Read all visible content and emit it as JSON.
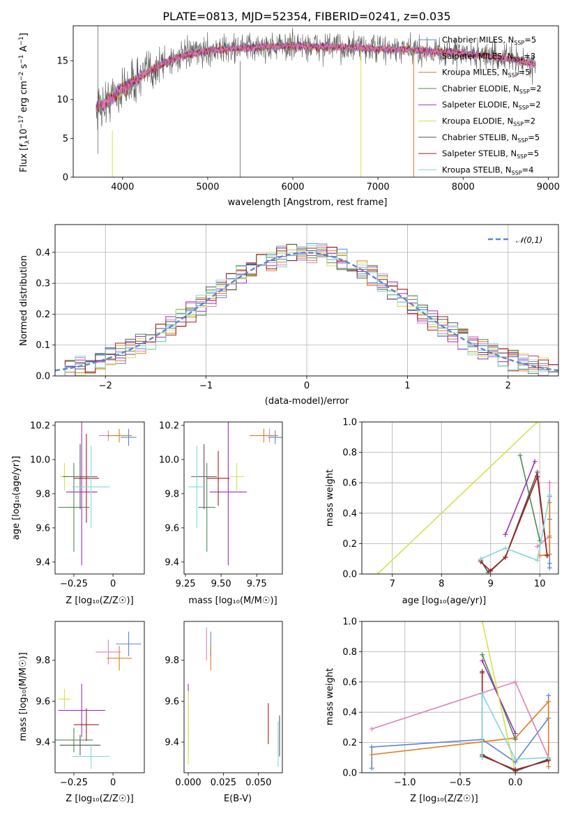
{
  "title": "PLATE=0813, MJD=52354, FIBERID=0241, z=0.035",
  "colors": [
    "#5b84d6",
    "#e07fb8",
    "#e07b20",
    "#4f8a55",
    "#9a2fbf",
    "#d8e04a",
    "#555555",
    "#a01e1e",
    "#7fd8dc"
  ],
  "chart_data": [
    {
      "type": "line",
      "name": "spectrum",
      "xlabel": "wavelength [Angstrom, rest frame]",
      "ylabel": "Flux [f_λ 10^-17 erg cm^-2 s^-1 A^-1]",
      "xlim": [
        3420,
        9120
      ],
      "ylim": [
        0,
        19.5
      ],
      "xticks": [
        4000,
        5000,
        6000,
        7000,
        8000,
        9000
      ],
      "yticks": [
        0,
        5,
        10,
        15
      ],
      "grid": false,
      "legend_position": "top-right",
      "continuum": {
        "x": [
          3690,
          3800,
          3900,
          4000,
          4100,
          4200,
          4300,
          4500,
          4700,
          4900,
          5100,
          5300,
          5500,
          5700,
          5900,
          6100,
          6300,
          6500,
          6700,
          6900,
          7100,
          7300,
          7500,
          7700,
          7900,
          8100,
          8300,
          8500,
          8700,
          8900
        ],
        "y": [
          9.0,
          9.5,
          10.5,
          11.3,
          12.0,
          12.8,
          13.6,
          14.8,
          15.6,
          16.1,
          16.4,
          16.6,
          16.7,
          16.8,
          16.9,
          16.9,
          16.8,
          16.8,
          16.7,
          16.6,
          16.5,
          16.4,
          16.3,
          16.2,
          16.0,
          15.8,
          15.6,
          15.3,
          14.9,
          14.4
        ]
      },
      "series": [
        {
          "name": "Chabrier MILES, N_SSP=5",
          "label_main": "Chabrier MILES, N",
          "label_sub": "SSP",
          "label_end": "=5"
        },
        {
          "name": "Salpeter MILES, N_SSP=3",
          "label_main": "Salpeter MILES, N",
          "label_sub": "SSP",
          "label_end": "=3"
        },
        {
          "name": "Kroupa MILES, N_SSP=5",
          "label_main": "Kroupa MILES, N",
          "label_sub": "SSP",
          "label_end": "=5"
        },
        {
          "name": "Chabrier ELODIE, N_SSP=2",
          "label_main": "Chabrier ELODIE, N",
          "label_sub": "SSP",
          "label_end": "=2"
        },
        {
          "name": "Salpeter ELODIE, N_SSP=2",
          "label_main": "Salpeter ELODIE, N",
          "label_sub": "SSP",
          "label_end": "=2"
        },
        {
          "name": "Kroupa ELODIE, N_SSP=2",
          "label_main": "Kroupa ELODIE, N",
          "label_sub": "SSP",
          "label_end": "=2"
        },
        {
          "name": "Chabrier STELIB, N_SSP=5",
          "label_main": "Chabrier STELIB, N",
          "label_sub": "SSP",
          "label_end": "=5"
        },
        {
          "name": "Salpeter STELIB, N_SSP=5",
          "label_main": "Salpeter STELIB, N",
          "label_sub": "SSP",
          "label_end": "=5"
        },
        {
          "name": "Kroupa STELIB, N_SSP=4",
          "label_main": "Kroupa STELIB, N",
          "label_sub": "SSP",
          "label_end": "=4"
        }
      ]
    },
    {
      "type": "histogram",
      "name": "residuals",
      "xlabel": "(data-model)/error",
      "ylabel": "Normed distribution",
      "xlim": [
        -2.5,
        2.5
      ],
      "ylim": [
        0,
        0.49
      ],
      "xticks": [
        -2,
        -1,
        0,
        1,
        2
      ],
      "yticks": [
        0.0,
        0.1,
        0.2,
        0.3,
        0.4
      ],
      "grid": true,
      "bin_width": 0.1,
      "bin_start": -2.5,
      "reference": {
        "name": "𝒩(0,1)",
        "style": "dashed",
        "color": "#5b84d6"
      },
      "legend_position": "top-right"
    },
    {
      "type": "scatter",
      "name": "age-vs-Z",
      "xlabel": "Z [log10(Z/Z☉)]",
      "ylabel": "age [log10(age/yr)]",
      "xlim": [
        -0.37,
        0.2
      ],
      "ylim": [
        9.33,
        10.22
      ],
      "xticks": [
        -0.25,
        0.0
      ],
      "yticks": [
        9.4,
        9.6,
        9.8,
        10.0,
        10.2
      ],
      "points": [
        {
          "x": 0.1,
          "y": 10.13,
          "xerr": 0.05,
          "yerr": 0.05
        },
        {
          "x": -0.03,
          "y": 10.14,
          "xerr": 0.06,
          "yerr": 0.03
        },
        {
          "x": 0.04,
          "y": 10.14,
          "xerr": 0.08,
          "yerr": 0.04
        },
        {
          "x": -0.25,
          "y": 9.72,
          "xerr": 0.1,
          "yerr": 0.26
        },
        {
          "x": -0.2,
          "y": 9.81,
          "xerr": 0.1,
          "yerr": 0.43
        },
        {
          "x": -0.31,
          "y": 9.9,
          "xerr": 0.03,
          "yerr": 0.08
        },
        {
          "x": -0.21,
          "y": 9.9,
          "xerr": 0.11,
          "yerr": 0.19
        },
        {
          "x": -0.17,
          "y": 9.89,
          "xerr": 0.08,
          "yerr": 0.26
        },
        {
          "x": -0.14,
          "y": 9.84,
          "xerr": 0.12,
          "yerr": 0.24
        }
      ]
    },
    {
      "type": "scatter",
      "name": "age-vs-mass",
      "xlabel": "mass [log10(M/M☉)]",
      "ylabel": "",
      "xlim": [
        9.24,
        9.93
      ],
      "ylim": [
        9.33,
        10.22
      ],
      "xticks": [
        9.25,
        9.5,
        9.75
      ],
      "yticks": [
        9.4,
        9.6,
        9.8,
        10.0,
        10.2
      ],
      "points": [
        {
          "x": 9.88,
          "y": 10.13,
          "xerr": 0.05,
          "yerr": 0.04
        },
        {
          "x": 9.84,
          "y": 10.14,
          "xerr": 0.04,
          "yerr": 0.04
        },
        {
          "x": 9.8,
          "y": 10.14,
          "xerr": 0.1,
          "yerr": 0.04
        },
        {
          "x": 9.4,
          "y": 9.72,
          "xerr": 0.06,
          "yerr": 0.26
        },
        {
          "x": 9.55,
          "y": 9.81,
          "xerr": 0.13,
          "yerr": 0.43
        },
        {
          "x": 9.61,
          "y": 9.9,
          "xerr": 0.05,
          "yerr": 0.08
        },
        {
          "x": 9.38,
          "y": 9.9,
          "xerr": 0.09,
          "yerr": 0.19
        },
        {
          "x": 9.48,
          "y": 9.89,
          "xerr": 0.08,
          "yerr": 0.16
        },
        {
          "x": 9.33,
          "y": 9.84,
          "xerr": 0.06,
          "yerr": 0.24
        }
      ]
    },
    {
      "type": "line",
      "name": "mass-weight-vs-age",
      "xlabel": "age [log10(age/yr)]",
      "ylabel": "mass weight",
      "xlim": [
        6.38,
        10.38
      ],
      "ylim": [
        0,
        1.0
      ],
      "xticks": [
        7,
        8,
        9,
        10
      ],
      "yticks": [
        0.0,
        0.2,
        0.4,
        0.6,
        0.8,
        1.0
      ],
      "grid": true,
      "series": [
        {
          "color_index": 0,
          "x": [
            10.2,
            10.2,
            10.2,
            10.2
          ],
          "y": [
            0.04,
            0.07,
            0.36,
            0.51
          ]
        },
        {
          "color_index": 1,
          "x": [
            9.95,
            10.2,
            10.2
          ],
          "y": [
            0.18,
            0.25,
            0.6
          ]
        },
        {
          "color_index": 2,
          "x": [
            10.0,
            10.2,
            10.2,
            10.2
          ],
          "y": [
            0.12,
            0.13,
            0.24,
            0.47
          ]
        },
        {
          "color_index": 3,
          "x": [
            9.6,
            10.0
          ],
          "y": [
            0.78,
            0.22
          ]
        },
        {
          "color_index": 4,
          "x": [
            9.3,
            9.9
          ],
          "y": [
            0.26,
            0.74
          ]
        },
        {
          "color_index": 5,
          "x": [
            6.7,
            9.95
          ],
          "y": [
            0.0,
            1.0
          ]
        },
        {
          "color_index": 6,
          "x": [
            8.8,
            8.95,
            9.3,
            9.95,
            10.15
          ],
          "y": [
            0.09,
            0.01,
            0.11,
            0.67,
            0.12
          ]
        },
        {
          "color_index": 7,
          "x": [
            8.8,
            9.0,
            9.3,
            9.95,
            10.15
          ],
          "y": [
            0.08,
            0.02,
            0.11,
            0.64,
            0.12
          ]
        },
        {
          "color_index": 8,
          "x": [
            8.8,
            9.3,
            9.95,
            10.2
          ],
          "y": [
            0.1,
            0.17,
            0.09,
            0.52
          ]
        }
      ]
    },
    {
      "type": "scatter",
      "name": "mass-vs-Z",
      "xlabel": "Z [log10(Z/Z☉)]",
      "ylabel": "mass [log10(M/M☉)]",
      "xlim": [
        -0.37,
        0.2
      ],
      "ylim": [
        9.25,
        9.99
      ],
      "xticks": [
        -0.25,
        0.0
      ],
      "yticks": [
        9.4,
        9.6,
        9.8
      ],
      "points": [
        {
          "x": 0.1,
          "y": 9.88,
          "xerr": 0.08,
          "yerr": 0.06
        },
        {
          "x": -0.03,
          "y": 9.84,
          "xerr": 0.08,
          "yerr": 0.06
        },
        {
          "x": 0.04,
          "y": 9.81,
          "xerr": 0.08,
          "yerr": 0.06
        },
        {
          "x": -0.25,
          "y": 9.41,
          "xerr": 0.12,
          "yerr": 0.06
        },
        {
          "x": -0.2,
          "y": 9.555,
          "xerr": 0.15,
          "yerr": 0.13
        },
        {
          "x": -0.31,
          "y": 9.61,
          "xerr": 0.04,
          "yerr": 0.05
        },
        {
          "x": -0.21,
          "y": 9.385,
          "xerr": 0.13,
          "yerr": 0.05
        },
        {
          "x": -0.17,
          "y": 9.485,
          "xerr": 0.08,
          "yerr": 0.08
        },
        {
          "x": -0.14,
          "y": 9.33,
          "xerr": 0.12,
          "yerr": 0.06
        }
      ]
    },
    {
      "type": "scatter",
      "name": "mass-vs-EBV",
      "xlabel": "E(B-V)",
      "ylabel": "",
      "xlim": [
        -0.003,
        0.067
      ],
      "ylim": [
        9.25,
        9.99
      ],
      "xticks": [
        0.0,
        0.025,
        0.05
      ],
      "yticks": [
        9.4,
        9.6,
        9.8
      ],
      "points": [
        {
          "x": 0.016,
          "y": 9.88,
          "yerr": 0.06
        },
        {
          "x": 0.013,
          "y": 9.88,
          "yerr": 0.08
        },
        {
          "x": 0.016,
          "y": 9.81,
          "yerr": 0.06
        },
        {
          "x": 0.0,
          "y": 9.4,
          "yerr": 0.06
        },
        {
          "x": 0.0,
          "y": 9.555,
          "yerr": 0.13
        },
        {
          "x": 0.0,
          "y": 9.47,
          "yerr": 0.18
        },
        {
          "x": 0.065,
          "y": 9.43,
          "yerr": 0.1
        },
        {
          "x": 0.057,
          "y": 9.49,
          "yerr": 0.1
        },
        {
          "x": 0.064,
          "y": 9.39,
          "yerr": 0.11
        }
      ]
    },
    {
      "type": "line",
      "name": "mass-weight-vs-Z",
      "xlabel": "Z [log10(Z/Z☉)]",
      "ylabel": "mass weight",
      "xlim": [
        -1.39,
        0.39
      ],
      "ylim": [
        0,
        1.0
      ],
      "xticks": [
        -1.0,
        -0.5,
        0.0
      ],
      "yticks": [
        0.0,
        0.2,
        0.4,
        0.6,
        0.8,
        1.0
      ],
      "grid": true,
      "series": [
        {
          "color_index": 0,
          "x": [
            -1.3,
            -1.3,
            -0.3,
            0.0,
            0.3,
            0.3
          ],
          "y": [
            0.03,
            0.17,
            0.22,
            0.07,
            0.36,
            0.51
          ]
        },
        {
          "color_index": 1,
          "x": [
            -1.3,
            0.0,
            0.3
          ],
          "y": [
            0.29,
            0.6,
            0.1
          ]
        },
        {
          "color_index": 2,
          "x": [
            -1.3,
            0.0,
            0.3,
            0.3,
            0.3
          ],
          "y": [
            0.12,
            0.23,
            0.47,
            0.1,
            0.04
          ]
        },
        {
          "color_index": 3,
          "x": [
            -0.3,
            0.0
          ],
          "y": [
            0.78,
            0.22
          ]
        },
        {
          "color_index": 4,
          "x": [
            -0.3,
            0.0
          ],
          "y": [
            0.74,
            0.26
          ]
        },
        {
          "color_index": 5,
          "x": [
            -0.3,
            0.0
          ],
          "y": [
            1.0,
            0.0
          ]
        },
        {
          "color_index": 6,
          "x": [
            -0.3,
            -0.3,
            0.0,
            0.3
          ],
          "y": [
            0.67,
            0.12,
            0.01,
            0.09
          ]
        },
        {
          "color_index": 7,
          "x": [
            -0.3,
            -0.3,
            0.0,
            0.3
          ],
          "y": [
            0.66,
            0.11,
            0.02,
            0.08
          ]
        },
        {
          "color_index": 8,
          "x": [
            -0.3,
            -0.3,
            0.0,
            0.3
          ],
          "y": [
            0.1,
            0.52,
            0.09,
            0.1
          ]
        }
      ]
    }
  ],
  "axis_labels": {
    "p1_x": "wavelength [Angstrom, rest frame]",
    "p1_y_main": "Flux [f",
    "p2_x": "(data-model)/error",
    "p2_y": "Normed distribution",
    "p2_legend": "𝒩(0,1)",
    "p3_x": "Z [log₁₀(Z/Z☉)]",
    "p3_y": "age  [log₁₀(age/yr)]",
    "p4_x": "mass [log₁₀(M/M☉)]",
    "p5_x": "age  [log₁₀(age/yr)]",
    "p5_y": "mass weight",
    "p6_x": "Z [log₁₀(Z/Z☉)]",
    "p6_y": "mass [log₁₀(M/M☉)]",
    "p7_x": "E(B-V)",
    "p8_x": "Z [log₁₀(Z/Z☉)]",
    "p8_y": "mass weight"
  }
}
